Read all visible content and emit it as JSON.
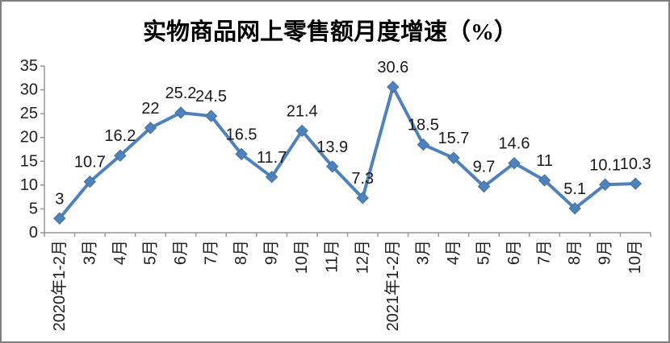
{
  "frame": {
    "background": "#FFFFFF",
    "border_color": "#7F7F7F"
  },
  "chart_data": {
    "type": "line",
    "title": "实物商品网上零售额月度增速（%）",
    "categories": [
      "2020年1-2月",
      "3月",
      "4月",
      "5月",
      "6月",
      "7月",
      "8月",
      "9月",
      "10月",
      "11月",
      "12月",
      "2021年1-2月",
      "3月",
      "4月",
      "5月",
      "6月",
      "7月",
      "8月",
      "9月",
      "10月"
    ],
    "values": [
      3,
      10.7,
      16.2,
      22,
      25.2,
      24.5,
      16.5,
      11.7,
      21.4,
      13.9,
      7.3,
      30.6,
      18.5,
      15.7,
      9.7,
      14.6,
      11,
      5.1,
      10.1,
      10.3
    ],
    "point_labels": [
      "3",
      "10.7",
      "16.2",
      "22",
      "25.2",
      "24.5",
      "16.5",
      "11.7",
      "21.4",
      "13.9",
      "7.3",
      "30.6",
      "18.5",
      "15.7",
      "9.7",
      "14.6",
      "11",
      "5.1",
      "10.1",
      "10.3"
    ],
    "xlabel": "",
    "ylabel": "",
    "ylim": [
      0,
      35
    ],
    "y_ticks": [
      0,
      5,
      10,
      15,
      20,
      25,
      30,
      35
    ],
    "grid": false,
    "legend": "none",
    "marker": "diamond",
    "colors": {
      "line": "#4F81BD",
      "marker_fill": "#4F81BD",
      "marker_stroke": "#44709F",
      "axis": "#969696",
      "tick_text": "#1F1F1F",
      "data_label_text": "#1A1A1A",
      "title_text": "#000000"
    }
  }
}
